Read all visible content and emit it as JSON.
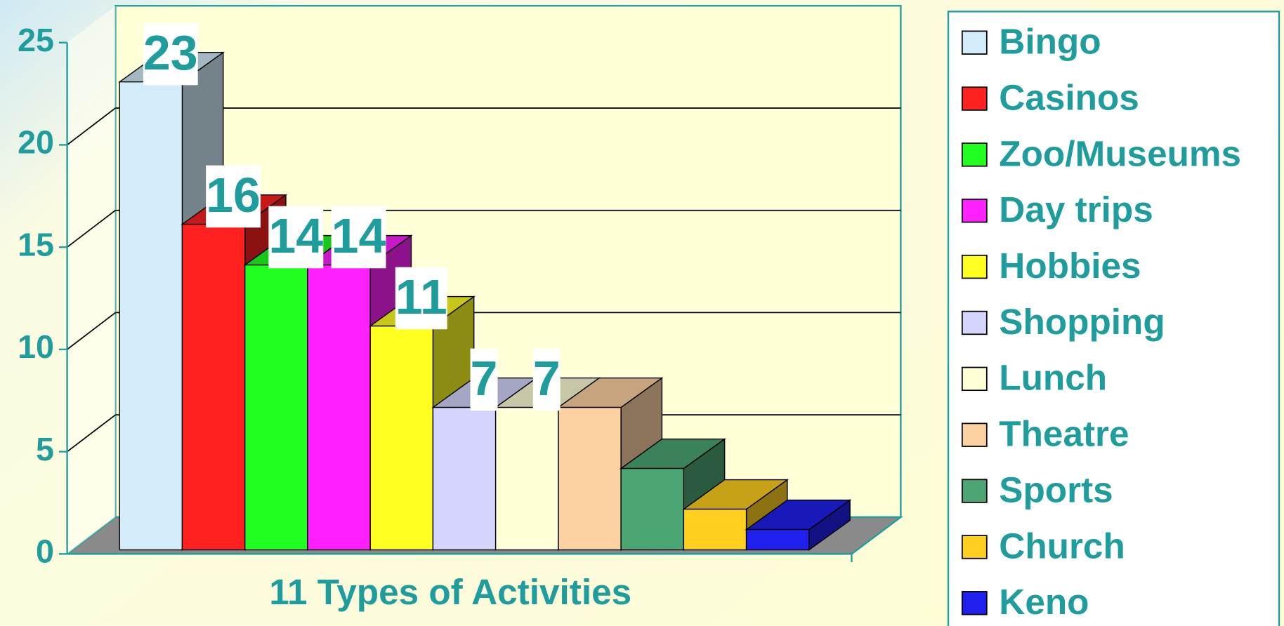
{
  "chart_data": {
    "type": "bar3d",
    "x_label": "11 Types of Activities",
    "categories": [
      "Bingo",
      "Casinos",
      "Zoo/Museums",
      "Day trips",
      "Hobbies",
      "Shopping",
      "Lunch",
      "Theatre",
      "Sports",
      "Church",
      "Keno"
    ],
    "values": [
      23,
      16,
      14,
      14,
      11,
      7,
      7,
      7,
      4,
      2,
      1
    ],
    "value_labels": [
      "23",
      "16",
      "14",
      "14",
      "11",
      "7",
      "7",
      null,
      null,
      null,
      null
    ],
    "colors": [
      "#d2ecfa",
      "#ff2020",
      "#20ff20",
      "#ff20ff",
      "#ffff20",
      "#d4d4fc",
      "#ffffd8",
      "#fdd2a2",
      "#4ca673",
      "#ffd020",
      "#2020ee"
    ],
    "ylim": [
      0,
      25
    ],
    "yticks": [
      0,
      5,
      10,
      15,
      20,
      25
    ],
    "grid": true,
    "legend": "right"
  }
}
